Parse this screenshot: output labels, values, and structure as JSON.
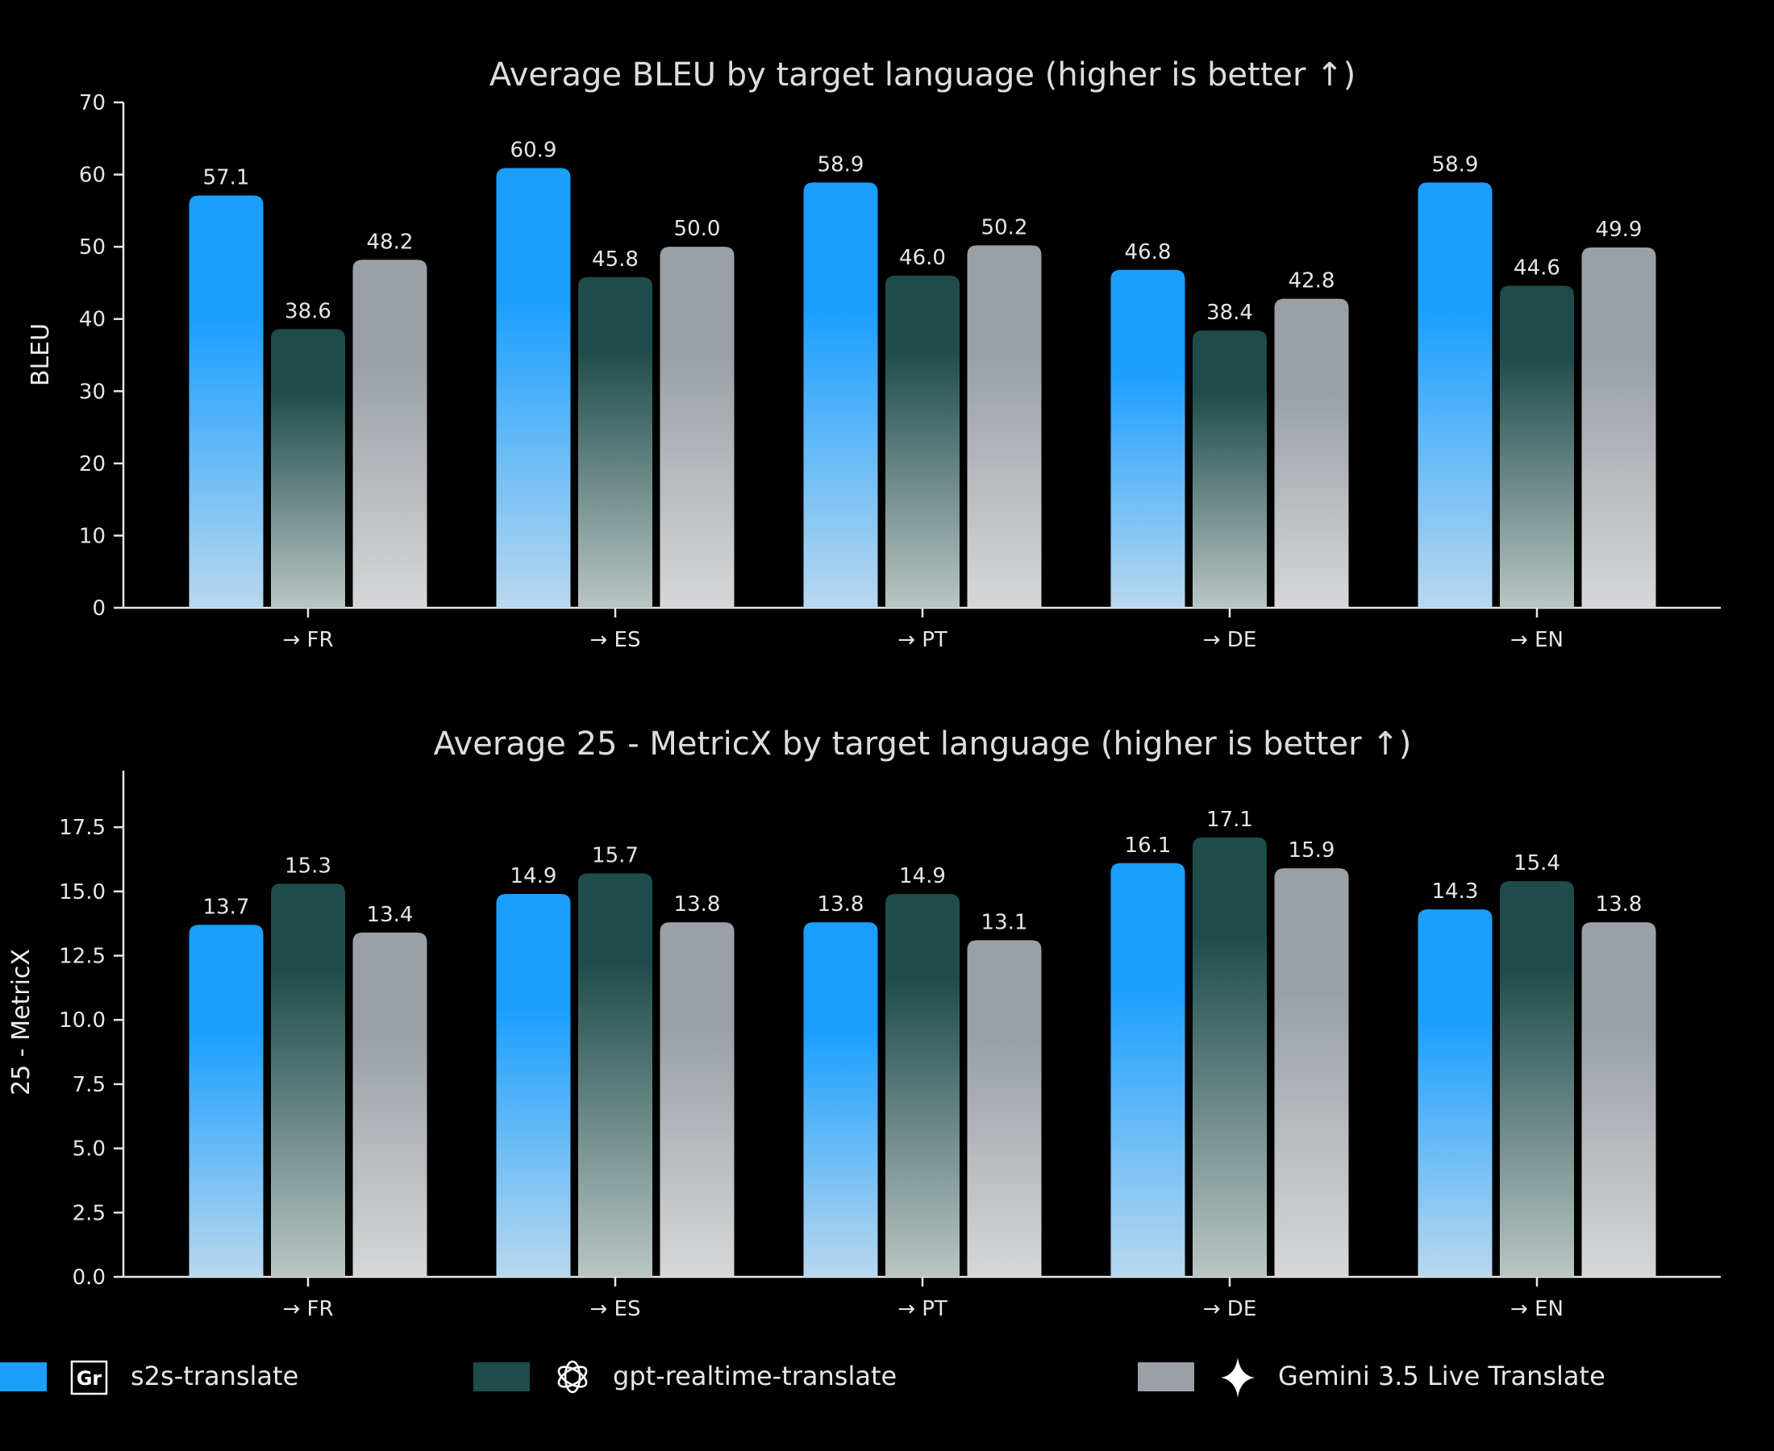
{
  "colors": {
    "background": "#000000",
    "series": [
      "#1a9fff",
      "#1e4c4a",
      "#9aa0a6"
    ]
  },
  "legend": [
    {
      "name": "s2s-translate",
      "icon": "gradio-logo-icon",
      "color": "#1a9fff"
    },
    {
      "name": "gpt-realtime-translate",
      "icon": "openai-logo-icon",
      "color": "#1e4c4a"
    },
    {
      "name": "Gemini 3.5 Live Translate",
      "icon": "gemini-sparkle-icon",
      "color": "#9aa0a6"
    }
  ],
  "chart_data": [
    {
      "type": "bar",
      "title": "Average BLEU by target language  (higher is better ↑)",
      "xlabel": "",
      "ylabel": "BLEU",
      "ylim": [
        0,
        70
      ],
      "yticks": [
        "0",
        "10",
        "20",
        "30",
        "40",
        "50",
        "60",
        "70"
      ],
      "ytick_values": [
        0,
        10,
        20,
        30,
        40,
        50,
        60,
        70
      ],
      "categories": [
        "→ FR",
        "→ ES",
        "→ PT",
        "→ DE",
        "→ EN"
      ],
      "series": [
        {
          "name": "s2s-translate",
          "values": [
            57.1,
            60.9,
            58.9,
            46.8,
            58.9
          ],
          "labels": [
            "57.1",
            "60.9",
            "58.9",
            "46.8",
            "58.9"
          ]
        },
        {
          "name": "gpt-realtime-translate",
          "values": [
            38.6,
            45.8,
            46.0,
            38.4,
            44.6
          ],
          "labels": [
            "38.6",
            "45.8",
            "46.0",
            "38.4",
            "44.6"
          ]
        },
        {
          "name": "Gemini 3.5 Live Translate",
          "values": [
            48.2,
            50.0,
            50.2,
            42.8,
            49.9
          ],
          "labels": [
            "48.2",
            "50.0",
            "50.2",
            "42.8",
            "49.9"
          ]
        }
      ],
      "grid": false,
      "legend": "bottom"
    },
    {
      "type": "bar",
      "title": "Average 25 - MetricX by target language  (higher is better ↑)",
      "xlabel": "",
      "ylabel": "25 - MetricX",
      "ylim": [
        0,
        19.7
      ],
      "yticks": [
        "0.0",
        "2.5",
        "5.0",
        "7.5",
        "10.0",
        "12.5",
        "15.0",
        "17.5"
      ],
      "ytick_values": [
        0,
        2.5,
        5,
        7.5,
        10,
        12.5,
        15,
        17.5
      ],
      "categories": [
        "→ FR",
        "→ ES",
        "→ PT",
        "→ DE",
        "→ EN"
      ],
      "series": [
        {
          "name": "s2s-translate",
          "values": [
            13.7,
            14.9,
            13.8,
            16.1,
            14.3
          ],
          "labels": [
            "13.7",
            "14.9",
            "13.8",
            "16.1",
            "14.3"
          ]
        },
        {
          "name": "gpt-realtime-translate",
          "values": [
            15.3,
            15.7,
            14.9,
            17.1,
            15.4
          ],
          "labels": [
            "15.3",
            "15.7",
            "14.9",
            "17.1",
            "15.4"
          ]
        },
        {
          "name": "Gemini 3.5 Live Translate",
          "values": [
            13.4,
            13.8,
            13.1,
            15.9,
            13.8
          ],
          "labels": [
            "13.4",
            "13.8",
            "13.1",
            "15.9",
            "13.8"
          ]
        }
      ],
      "grid": false,
      "legend": "bottom"
    }
  ]
}
